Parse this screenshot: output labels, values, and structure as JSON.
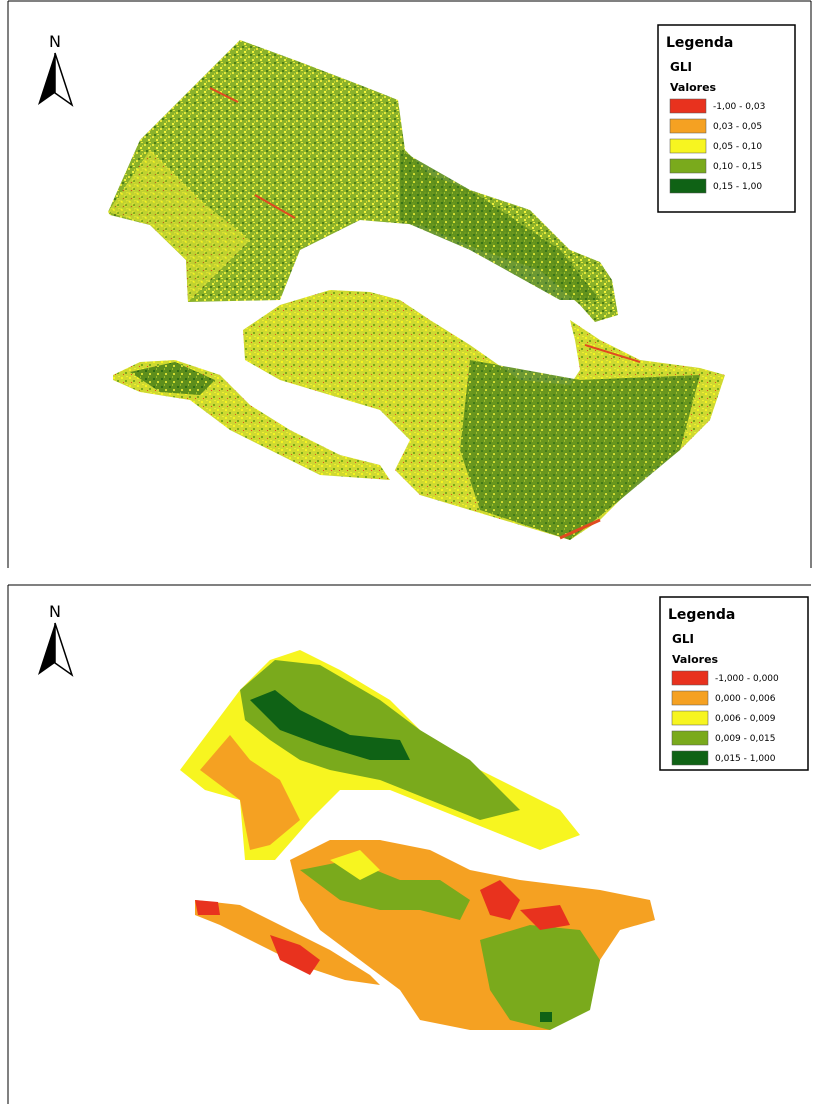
{
  "panels": [
    {
      "north": "N",
      "legend": {
        "title": "Legenda",
        "layer": "GLI",
        "subtitle": "Valores",
        "items": [
          {
            "label": "-1,00 - 0,03",
            "color": "#e8321e"
          },
          {
            "label": "0,03 - 0,05",
            "color": "#f5a122"
          },
          {
            "label": "0,05 - 0,10",
            "color": "#f7f520"
          },
          {
            "label": "0,10 - 0,15",
            "color": "#7aaa1c"
          },
          {
            "label": "0,15 - 1,00",
            "color": "#0f6215"
          }
        ]
      }
    },
    {
      "north": "N",
      "legend": {
        "title": "Legenda",
        "layer": "GLI",
        "subtitle": "Valores",
        "items": [
          {
            "label": "-1,000 - 0,000",
            "color": "#e8321e"
          },
          {
            "label": "0,000 - 0,006",
            "color": "#f5a122"
          },
          {
            "label": "0,006 - 0,009",
            "color": "#f7f520"
          },
          {
            "label": "0,009 - 0,015",
            "color": "#7aaa1c"
          },
          {
            "label": "0,015 - 1,000",
            "color": "#0f6215"
          }
        ]
      }
    }
  ]
}
